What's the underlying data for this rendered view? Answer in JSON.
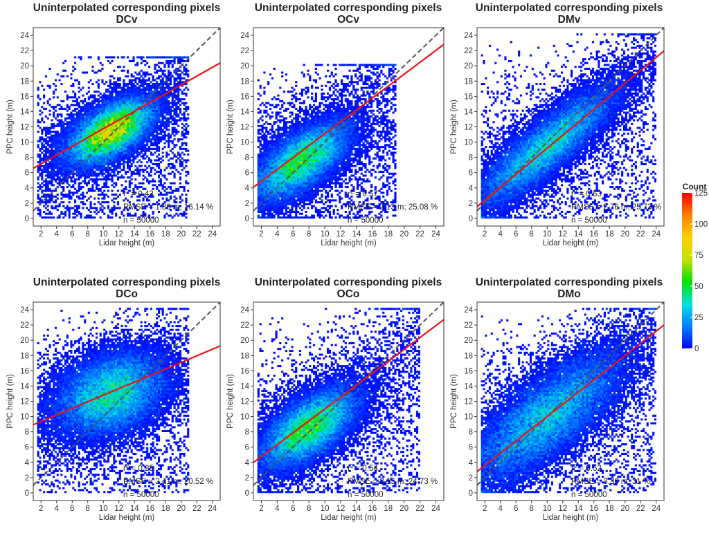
{
  "chart_data": [
    {
      "type": "scatter",
      "title": "Uninterpolated corresponding pixels",
      "subtitle": "DCv",
      "xlabel": "Lidar height (m)",
      "ylabel": "PPC height (m)",
      "xlim": [
        1,
        25
      ],
      "ylim": [
        -1,
        25
      ],
      "xticks": [
        "2",
        "4",
        "6",
        "8",
        "10",
        "12",
        "14",
        "16",
        "18",
        "20",
        "22",
        "24"
      ],
      "yticks": [
        "0",
        "2",
        "4",
        "6",
        "8",
        "10",
        "12",
        "14",
        "16",
        "18",
        "20",
        "22",
        "24"
      ],
      "r2_prefix": "r",
      "r2_suffix": " = 0.43",
      "r2": 0.43,
      "rmse_text": "RMSE = 1.86 m; 16.14 %",
      "n_text": "n = 50000",
      "fit_line": {
        "intercept": 6.0,
        "slope": 0.575
      },
      "one_to_one": true,
      "density": {
        "center": [
          11,
          11.5
        ],
        "spread_major": 3.3,
        "spread_minor": 1.6,
        "angle_deg": 33,
        "xrange": [
          1.5,
          21
        ],
        "yrange": [
          0,
          21
        ],
        "peak": 110
      }
    },
    {
      "type": "scatter",
      "title": "Uninterpolated corresponding pixels",
      "subtitle": "OCv",
      "xlabel": "Lidar height (m)",
      "ylabel": "PPC height (m)",
      "xlim": [
        1,
        25
      ],
      "ylim": [
        -1,
        25
      ],
      "xticks": [
        "2",
        "4",
        "6",
        "8",
        "10",
        "12",
        "14",
        "16",
        "18",
        "20",
        "22",
        "24"
      ],
      "yticks": [
        "0",
        "2",
        "4",
        "6",
        "8",
        "10",
        "12",
        "14",
        "16",
        "18",
        "20",
        "22",
        "24"
      ],
      "r2_prefix": "r",
      "r2_suffix": " = 0.57",
      "r2": 0.57,
      "rmse_text": "RMSE = 2.13 m; 25.08 %",
      "n_text": "n = 50000",
      "fit_line": {
        "intercept": 3.3,
        "slope": 0.78
      },
      "one_to_one": true,
      "density": {
        "center": [
          7,
          7.5
        ],
        "spread_major": 3.8,
        "spread_minor": 1.7,
        "angle_deg": 38,
        "xrange": [
          1.5,
          19
        ],
        "yrange": [
          0,
          20
        ],
        "peak": 75
      }
    },
    {
      "type": "scatter",
      "title": "Uninterpolated corresponding pixels",
      "subtitle": "DMv",
      "xlabel": "Lidar height (m)",
      "ylabel": "PPC height (m)",
      "xlim": [
        1,
        25
      ],
      "ylim": [
        -1,
        25
      ],
      "xticks": [
        "2",
        "4",
        "6",
        "8",
        "10",
        "12",
        "14",
        "16",
        "18",
        "20",
        "22",
        "24"
      ],
      "yticks": [
        "0",
        "2",
        "4",
        "6",
        "8",
        "10",
        "12",
        "14",
        "16",
        "18",
        "20",
        "22",
        "24"
      ],
      "r2_prefix": "r",
      "r2_suffix": " = 0.63",
      "r2": 0.63,
      "rmse_text": "RMSE = 2.76 m; 25.73 %",
      "n_text": "n = 50000",
      "fit_line": {
        "intercept": 0.7,
        "slope": 0.85
      },
      "one_to_one": true,
      "density": {
        "center": [
          10,
          9.5
        ],
        "spread_major": 6.0,
        "spread_minor": 1.6,
        "angle_deg": 41,
        "xrange": [
          1.5,
          24
        ],
        "yrange": [
          0,
          24
        ],
        "peak": 55
      }
    },
    {
      "type": "scatter",
      "title": "Uninterpolated corresponding pixels",
      "subtitle": "DCo",
      "xlabel": "Lidar height (m)",
      "ylabel": "PPC height (m)",
      "xlim": [
        1,
        25
      ],
      "ylim": [
        -1,
        25
      ],
      "xticks": [
        "2",
        "4",
        "6",
        "8",
        "10",
        "12",
        "14",
        "16",
        "18",
        "20",
        "22",
        "24"
      ],
      "yticks": [
        "0",
        "2",
        "4",
        "6",
        "8",
        "10",
        "12",
        "14",
        "16",
        "18",
        "20",
        "22",
        "24"
      ],
      "r2_prefix": "r",
      "r2_suffix": " = 0.25",
      "r2": 0.25,
      "rmse_text": "RMSE = 2.41 m; 20.52 %",
      "n_text": "n = 50000",
      "fit_line": {
        "intercept": 8.5,
        "slope": 0.43
      },
      "one_to_one": true,
      "density": {
        "center": [
          11,
          13
        ],
        "spread_major": 3.8,
        "spread_minor": 2.6,
        "angle_deg": 25,
        "xrange": [
          1.5,
          21
        ],
        "yrange": [
          0,
          24
        ],
        "peak": 62
      }
    },
    {
      "type": "scatter",
      "title": "Uninterpolated corresponding pixels",
      "subtitle": "OCo",
      "xlabel": "Lidar height (m)",
      "ylabel": "PPC height (m)",
      "xlim": [
        1,
        25
      ],
      "ylim": [
        -1,
        25
      ],
      "xticks": [
        "2",
        "4",
        "6",
        "8",
        "10",
        "12",
        "14",
        "16",
        "18",
        "20",
        "22",
        "24"
      ],
      "yticks": [
        "0",
        "2",
        "4",
        "6",
        "8",
        "10",
        "12",
        "14",
        "16",
        "18",
        "20",
        "22",
        "24"
      ],
      "r2_prefix": "r",
      "r2_suffix": " = 0.54",
      "r2": 0.54,
      "rmse_text": "RMSE = 2.15 m; 24.73 %",
      "n_text": "n = 50000",
      "fit_line": {
        "intercept": 3.2,
        "slope": 0.78
      },
      "one_to_one": true,
      "density": {
        "center": [
          8,
          8.5
        ],
        "spread_major": 3.8,
        "spread_minor": 1.8,
        "angle_deg": 38,
        "xrange": [
          1.5,
          22
        ],
        "yrange": [
          0,
          24
        ],
        "peak": 75
      }
    },
    {
      "type": "scatter",
      "title": "Uninterpolated corresponding pixels",
      "subtitle": "DMo",
      "xlabel": "Lidar height (m)",
      "ylabel": "PPC height (m)",
      "xlim": [
        1,
        25
      ],
      "ylim": [
        -1,
        25
      ],
      "xticks": [
        "2",
        "4",
        "6",
        "8",
        "10",
        "12",
        "14",
        "16",
        "18",
        "20",
        "22",
        "24"
      ],
      "yticks": [
        "0",
        "2",
        "4",
        "6",
        "8",
        "10",
        "12",
        "14",
        "16",
        "18",
        "20",
        "22",
        "24"
      ],
      "r2_prefix": "r",
      "r2_suffix": " = 0.52",
      "r2": 0.52,
      "rmse_text": "RMSE = 3.36 m; 31 %",
      "n_text": "n = 50000",
      "fit_line": {
        "intercept": 2.0,
        "slope": 0.8
      },
      "one_to_one": true,
      "density": {
        "center": [
          10,
          10
        ],
        "spread_major": 6.5,
        "spread_minor": 2.4,
        "angle_deg": 40,
        "xrange": [
          1.5,
          24
        ],
        "yrange": [
          0,
          24
        ],
        "peak": 50
      }
    }
  ],
  "legend": {
    "title": "Count",
    "ticks": [
      "125",
      "100",
      "75",
      "50",
      "25",
      "0"
    ],
    "tick_values": [
      125,
      100,
      75,
      50,
      25,
      0
    ],
    "range": [
      0,
      125
    ],
    "colors": [
      "#0000ff",
      "#0080ff",
      "#00e0e0",
      "#00e000",
      "#c8e000",
      "#ffd000",
      "#ff8000",
      "#ff0000"
    ]
  },
  "style": {
    "fit_line_color": "#ee1111",
    "one_to_one_color": "#555555"
  }
}
